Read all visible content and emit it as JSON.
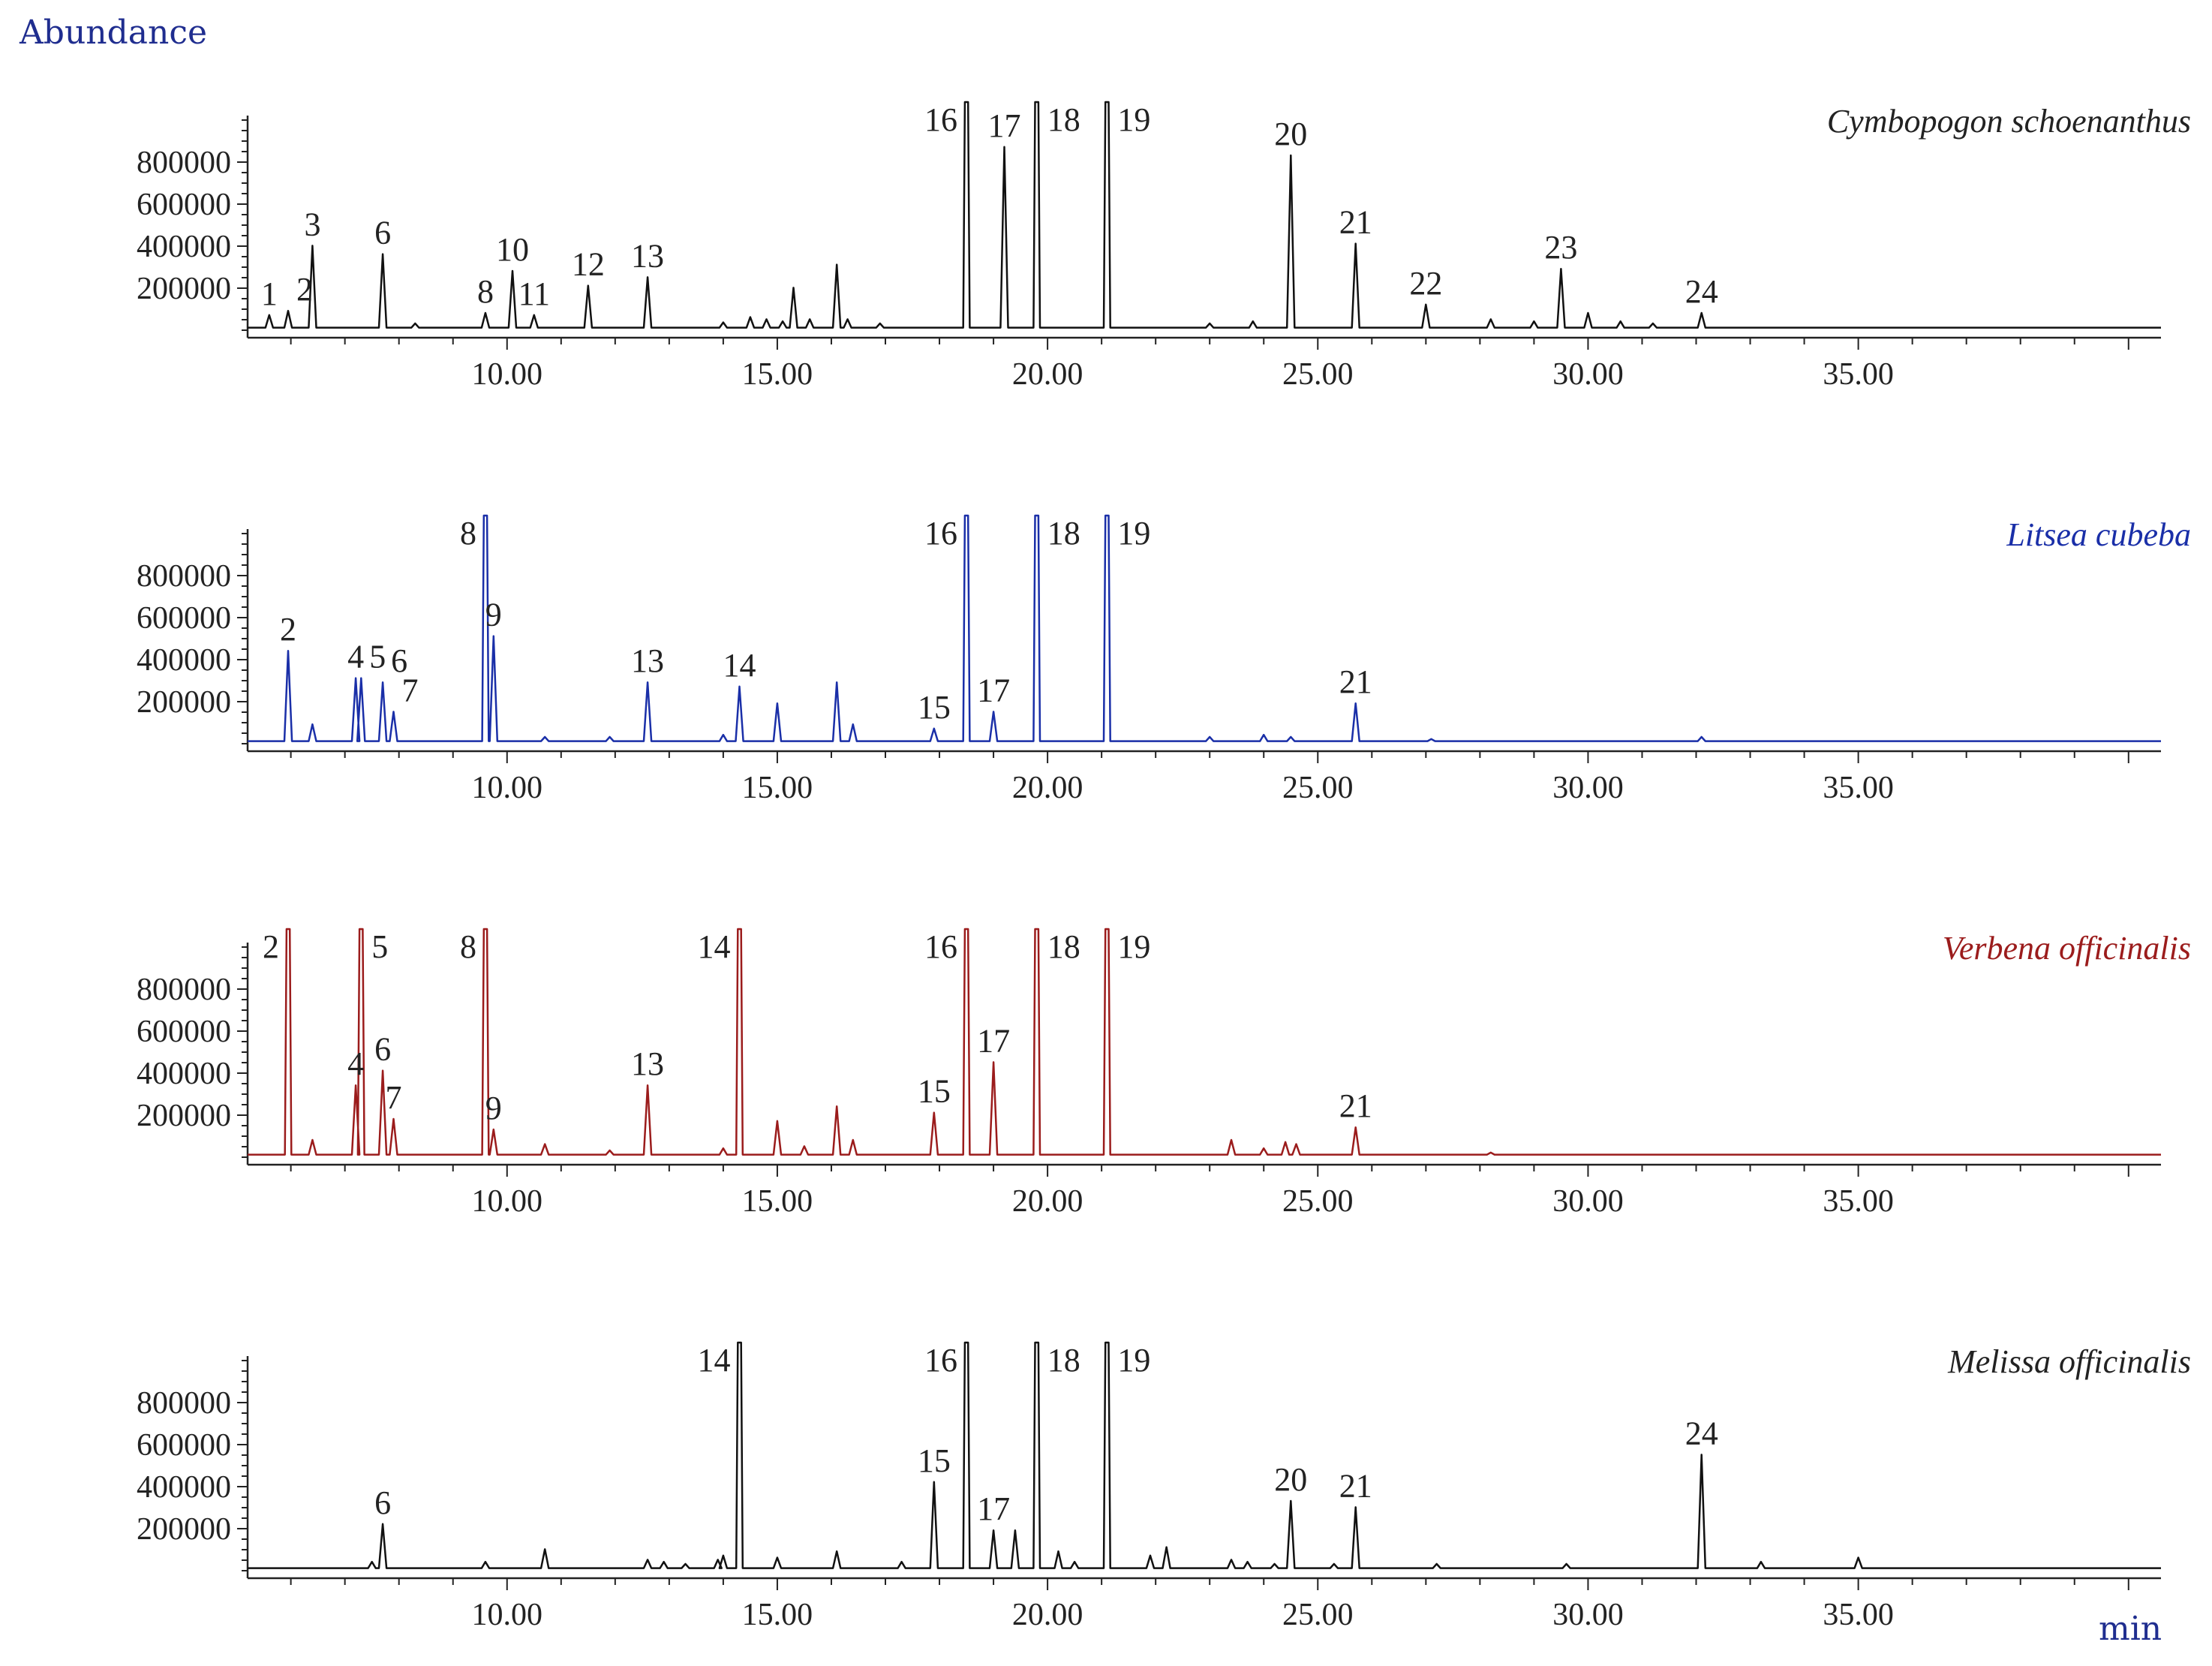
{
  "chart_data": [
    {
      "type": "line",
      "title": "Cymbopogon schoenanthus",
      "color": "#111111",
      "ylabel": "Abundance",
      "xlabel": "min",
      "xlim": [
        5.2,
        40.6
      ],
      "ylim": [
        0,
        1000000
      ],
      "yticks": [
        "200000",
        "400000",
        "600000",
        "800000"
      ],
      "xticks": [
        "10.00",
        "15.00",
        "20.00",
        "25.00",
        "30.00",
        "35.00"
      ],
      "peaks": [
        {
          "label": "1",
          "x": 5.6,
          "y": 60000
        },
        {
          "label": "2",
          "x": 5.95,
          "y": 80000
        },
        {
          "label": "3",
          "x": 6.4,
          "y": 390000
        },
        {
          "label": "6",
          "x": 7.7,
          "y": 350000
        },
        {
          "label": "8",
          "x": 9.6,
          "y": 70000
        },
        {
          "label": "10",
          "x": 10.1,
          "y": 270000
        },
        {
          "label": "11",
          "x": 10.5,
          "y": 60000
        },
        {
          "label": "12",
          "x": 11.5,
          "y": 200000
        },
        {
          "label": "13",
          "x": 12.6,
          "y": 240000
        },
        {
          "label": "16",
          "x": 18.5,
          "y": 1000000
        },
        {
          "label": "17",
          "x": 19.2,
          "y": 860000
        },
        {
          "label": "18",
          "x": 19.8,
          "y": 1000000
        },
        {
          "label": "19",
          "x": 21.1,
          "y": 1000000
        },
        {
          "label": "20",
          "x": 24.5,
          "y": 820000
        },
        {
          "label": "21",
          "x": 25.7,
          "y": 400000
        },
        {
          "label": "22",
          "x": 27.0,
          "y": 110000
        },
        {
          "label": "23",
          "x": 29.5,
          "y": 280000
        },
        {
          "label": "24",
          "x": 32.1,
          "y": 70000
        }
      ],
      "minor_peaks": [
        {
          "x": 8.3,
          "y": 20000
        },
        {
          "x": 14.0,
          "y": 25000
        },
        {
          "x": 14.5,
          "y": 50000
        },
        {
          "x": 14.8,
          "y": 40000
        },
        {
          "x": 15.1,
          "y": 30000
        },
        {
          "x": 15.3,
          "y": 190000
        },
        {
          "x": 15.6,
          "y": 40000
        },
        {
          "x": 16.1,
          "y": 300000
        },
        {
          "x": 16.3,
          "y": 40000
        },
        {
          "x": 16.9,
          "y": 20000
        },
        {
          "x": 23.0,
          "y": 20000
        },
        {
          "x": 23.8,
          "y": 30000
        },
        {
          "x": 28.2,
          "y": 40000
        },
        {
          "x": 29.0,
          "y": 30000
        },
        {
          "x": 30.0,
          "y": 70000
        },
        {
          "x": 30.6,
          "y": 30000
        },
        {
          "x": 31.2,
          "y": 20000
        }
      ]
    },
    {
      "type": "line",
      "title": "Litsea cubeba",
      "color": "#1a2fa8",
      "xlim": [
        5.2,
        40.6
      ],
      "ylim": [
        0,
        1000000
      ],
      "yticks": [
        "200000",
        "400000",
        "600000",
        "800000"
      ],
      "xticks": [
        "10.00",
        "15.00",
        "20.00",
        "25.00",
        "30.00",
        "35.00"
      ],
      "peaks": [
        {
          "label": "2",
          "x": 5.95,
          "y": 430000
        },
        {
          "label": "4",
          "x": 7.2,
          "y": 300000
        },
        {
          "label": "5",
          "x": 7.3,
          "y": 300000
        },
        {
          "label": "6",
          "x": 7.7,
          "y": 280000
        },
        {
          "label": "7",
          "x": 7.9,
          "y": 140000
        },
        {
          "label": "8",
          "x": 9.6,
          "y": 1000000
        },
        {
          "label": "9",
          "x": 9.75,
          "y": 500000
        },
        {
          "label": "13",
          "x": 12.6,
          "y": 280000
        },
        {
          "label": "14",
          "x": 14.3,
          "y": 260000
        },
        {
          "label": "15",
          "x": 17.9,
          "y": 60000
        },
        {
          "label": "16",
          "x": 18.5,
          "y": 1000000
        },
        {
          "label": "17",
          "x": 19.0,
          "y": 140000
        },
        {
          "label": "18",
          "x": 19.8,
          "y": 1000000
        },
        {
          "label": "19",
          "x": 21.1,
          "y": 1000000
        },
        {
          "label": "21",
          "x": 25.7,
          "y": 180000
        }
      ],
      "minor_peaks": [
        {
          "x": 6.4,
          "y": 80000
        },
        {
          "x": 10.7,
          "y": 20000
        },
        {
          "x": 11.9,
          "y": 20000
        },
        {
          "x": 14.0,
          "y": 30000
        },
        {
          "x": 15.0,
          "y": 180000
        },
        {
          "x": 16.1,
          "y": 280000
        },
        {
          "x": 16.4,
          "y": 80000
        },
        {
          "x": 23.0,
          "y": 20000
        },
        {
          "x": 24.0,
          "y": 30000
        },
        {
          "x": 24.5,
          "y": 20000
        },
        {
          "x": 27.1,
          "y": 10000
        },
        {
          "x": 32.1,
          "y": 20000
        }
      ]
    },
    {
      "type": "line",
      "title": "Verbena officinalis",
      "color": "#9b1c1c",
      "xlim": [
        5.2,
        40.6
      ],
      "ylim": [
        0,
        1000000
      ],
      "yticks": [
        "200000",
        "400000",
        "600000",
        "800000"
      ],
      "xticks": [
        "10.00",
        "15.00",
        "20.00",
        "25.00",
        "30.00",
        "35.00"
      ],
      "peaks": [
        {
          "label": "2",
          "x": 5.95,
          "y": 1000000
        },
        {
          "label": "4",
          "x": 7.2,
          "y": 330000
        },
        {
          "label": "5",
          "x": 7.3,
          "y": 1000000
        },
        {
          "label": "6",
          "x": 7.7,
          "y": 400000
        },
        {
          "label": "7",
          "x": 7.9,
          "y": 170000
        },
        {
          "label": "8",
          "x": 9.6,
          "y": 1000000
        },
        {
          "label": "9",
          "x": 9.75,
          "y": 120000
        },
        {
          "label": "13",
          "x": 12.6,
          "y": 330000
        },
        {
          "label": "14",
          "x": 14.3,
          "y": 1000000
        },
        {
          "label": "15",
          "x": 17.9,
          "y": 200000
        },
        {
          "label": "16",
          "x": 18.5,
          "y": 1000000
        },
        {
          "label": "17",
          "x": 19.0,
          "y": 440000
        },
        {
          "label": "18",
          "x": 19.8,
          "y": 1000000
        },
        {
          "label": "19",
          "x": 21.1,
          "y": 1000000
        },
        {
          "label": "21",
          "x": 25.7,
          "y": 130000
        }
      ],
      "minor_peaks": [
        {
          "x": 6.4,
          "y": 70000
        },
        {
          "x": 10.7,
          "y": 50000
        },
        {
          "x": 11.9,
          "y": 20000
        },
        {
          "x": 14.0,
          "y": 30000
        },
        {
          "x": 15.0,
          "y": 160000
        },
        {
          "x": 15.5,
          "y": 40000
        },
        {
          "x": 16.1,
          "y": 230000
        },
        {
          "x": 16.4,
          "y": 70000
        },
        {
          "x": 23.4,
          "y": 70000
        },
        {
          "x": 24.0,
          "y": 30000
        },
        {
          "x": 24.4,
          "y": 60000
        },
        {
          "x": 24.6,
          "y": 50000
        },
        {
          "x": 28.2,
          "y": 10000
        }
      ]
    },
    {
      "type": "line",
      "title": "Melissa officinalis",
      "color": "#111111",
      "xlabel": "min",
      "xlim": [
        5.2,
        40.6
      ],
      "ylim": [
        0,
        1000000
      ],
      "yticks": [
        "200000",
        "400000",
        "600000",
        "800000"
      ],
      "xticks": [
        "10.00",
        "15.00",
        "20.00",
        "25.00",
        "30.00",
        "35.00"
      ],
      "peaks": [
        {
          "label": "6",
          "x": 7.7,
          "y": 210000
        },
        {
          "label": "14",
          "x": 14.3,
          "y": 1000000
        },
        {
          "label": "15",
          "x": 17.9,
          "y": 410000
        },
        {
          "label": "16",
          "x": 18.5,
          "y": 1000000
        },
        {
          "label": "17",
          "x": 19.0,
          "y": 180000
        },
        {
          "label": "18",
          "x": 19.8,
          "y": 1000000
        },
        {
          "label": "19",
          "x": 21.1,
          "y": 1000000
        },
        {
          "label": "20",
          "x": 24.5,
          "y": 320000
        },
        {
          "label": "21",
          "x": 25.7,
          "y": 290000
        },
        {
          "label": "24",
          "x": 32.1,
          "y": 540000
        }
      ],
      "minor_peaks": [
        {
          "x": 7.5,
          "y": 30000
        },
        {
          "x": 9.6,
          "y": 30000
        },
        {
          "x": 10.7,
          "y": 90000
        },
        {
          "x": 12.6,
          "y": 40000
        },
        {
          "x": 12.9,
          "y": 30000
        },
        {
          "x": 13.3,
          "y": 20000
        },
        {
          "x": 13.9,
          "y": 40000
        },
        {
          "x": 14.0,
          "y": 60000
        },
        {
          "x": 15.0,
          "y": 50000
        },
        {
          "x": 16.1,
          "y": 80000
        },
        {
          "x": 17.3,
          "y": 30000
        },
        {
          "x": 19.4,
          "y": 180000
        },
        {
          "x": 20.2,
          "y": 80000
        },
        {
          "x": 20.5,
          "y": 30000
        },
        {
          "x": 21.9,
          "y": 60000
        },
        {
          "x": 22.2,
          "y": 100000
        },
        {
          "x": 23.4,
          "y": 40000
        },
        {
          "x": 23.7,
          "y": 30000
        },
        {
          "x": 24.2,
          "y": 20000
        },
        {
          "x": 25.3,
          "y": 20000
        },
        {
          "x": 27.2,
          "y": 20000
        },
        {
          "x": 29.6,
          "y": 20000
        },
        {
          "x": 33.2,
          "y": 30000
        },
        {
          "x": 35.0,
          "y": 50000
        }
      ]
    }
  ]
}
